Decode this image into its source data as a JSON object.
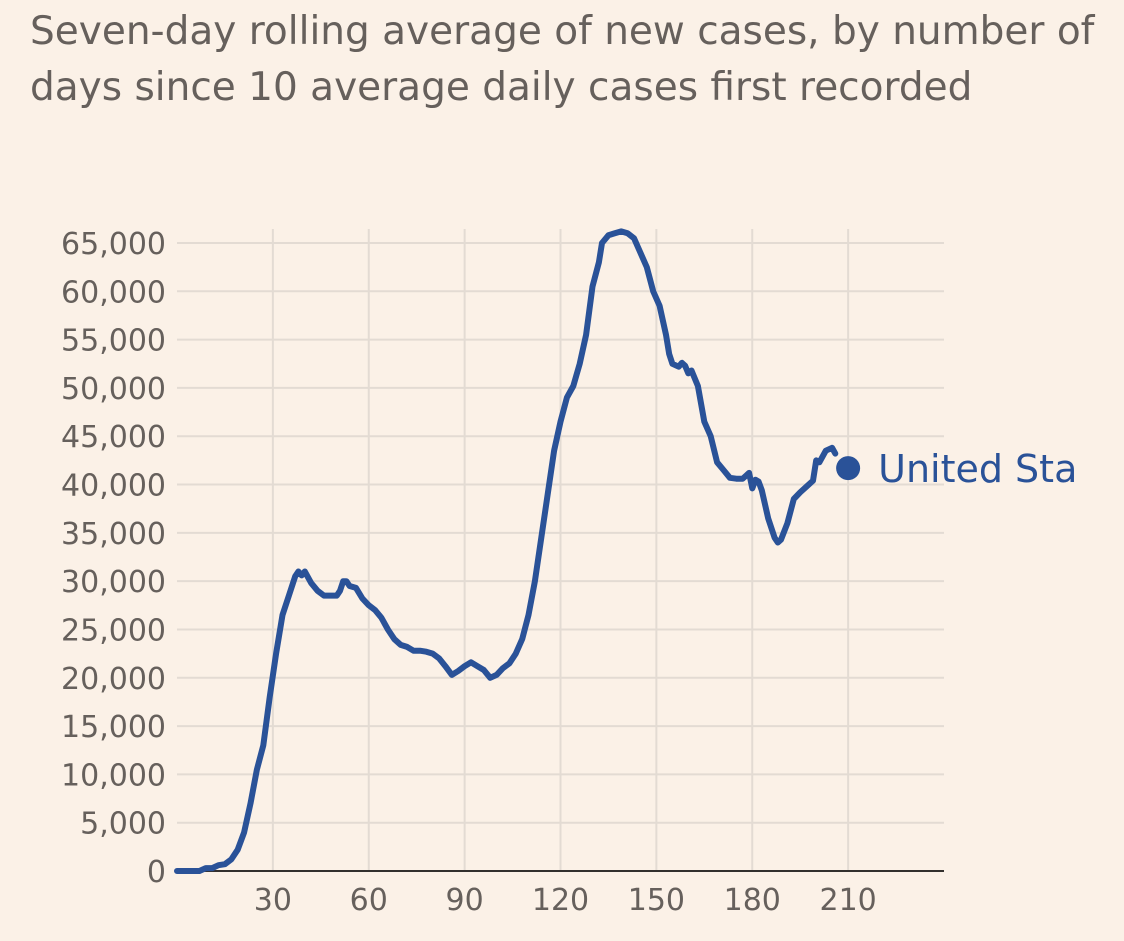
{
  "title": "Seven-day rolling average of new cases, by number of days since 10 average daily cases first recorded",
  "colors": {
    "background": "#fbf1e7",
    "grid": "#e3dbd3",
    "text": "#66605c",
    "series": "#2a5298",
    "axis": "#33302e"
  },
  "chart_data": {
    "type": "line",
    "title": "Seven-day rolling average of new cases, by number of days since 10 average daily cases first recorded",
    "xlabel": "",
    "ylabel": "",
    "xlim": [
      0,
      240
    ],
    "ylim": [
      0,
      65000
    ],
    "x_ticks": [
      30,
      60,
      90,
      120,
      150,
      180,
      210
    ],
    "x_tick_labels": [
      "30",
      "60",
      "90",
      "120",
      "150",
      "180",
      "210"
    ],
    "y_ticks": [
      0,
      5000,
      10000,
      15000,
      20000,
      25000,
      30000,
      35000,
      40000,
      45000,
      50000,
      55000,
      60000,
      65000
    ],
    "y_tick_labels": [
      "0",
      "5,000",
      "10,000",
      "15,000",
      "20,000",
      "25,000",
      "30,000",
      "35,000",
      "40,000",
      "45,000",
      "50,000",
      "55,000",
      "60,000",
      "65,000"
    ],
    "grid": true,
    "series": [
      {
        "name": "United States",
        "label_shown": "United Sta",
        "points": [
          [
            0,
            0
          ],
          [
            4,
            0
          ],
          [
            7,
            0
          ],
          [
            9,
            300
          ],
          [
            11,
            300
          ],
          [
            13,
            600
          ],
          [
            15,
            700
          ],
          [
            17,
            1200
          ],
          [
            19,
            2200
          ],
          [
            21,
            4000
          ],
          [
            23,
            7000
          ],
          [
            25,
            10500
          ],
          [
            27,
            13000
          ],
          [
            29,
            18000
          ],
          [
            31,
            22500
          ],
          [
            33,
            26500
          ],
          [
            35,
            28500
          ],
          [
            37,
            30500
          ],
          [
            38,
            31000
          ],
          [
            39,
            30600
          ],
          [
            40,
            31000
          ],
          [
            42,
            29800
          ],
          [
            44,
            29000
          ],
          [
            46,
            28500
          ],
          [
            48,
            28500
          ],
          [
            50,
            28500
          ],
          [
            51,
            29000
          ],
          [
            52,
            30000
          ],
          [
            53,
            30000
          ],
          [
            54,
            29500
          ],
          [
            56,
            29300
          ],
          [
            58,
            28200
          ],
          [
            60,
            27500
          ],
          [
            62,
            27000
          ],
          [
            64,
            26200
          ],
          [
            66,
            25000
          ],
          [
            68,
            24000
          ],
          [
            70,
            23400
          ],
          [
            72,
            23200
          ],
          [
            74,
            22800
          ],
          [
            76,
            22800
          ],
          [
            78,
            22700
          ],
          [
            80,
            22500
          ],
          [
            82,
            22000
          ],
          [
            84,
            21200
          ],
          [
            86,
            20300
          ],
          [
            88,
            20700
          ],
          [
            90,
            21200
          ],
          [
            92,
            21600
          ],
          [
            94,
            21200
          ],
          [
            96,
            20800
          ],
          [
            98,
            20000
          ],
          [
            100,
            20300
          ],
          [
            102,
            21000
          ],
          [
            104,
            21500
          ],
          [
            106,
            22500
          ],
          [
            108,
            24000
          ],
          [
            110,
            26500
          ],
          [
            112,
            30000
          ],
          [
            114,
            34500
          ],
          [
            116,
            39000
          ],
          [
            118,
            43500
          ],
          [
            120,
            46500
          ],
          [
            122,
            49000
          ],
          [
            124,
            50200
          ],
          [
            126,
            52500
          ],
          [
            128,
            55500
          ],
          [
            130,
            60500
          ],
          [
            132,
            63000
          ],
          [
            133,
            65000
          ],
          [
            135,
            65800
          ],
          [
            137,
            66000
          ],
          [
            139,
            66200
          ],
          [
            141,
            66000
          ],
          [
            143,
            65500
          ],
          [
            145,
            64000
          ],
          [
            147,
            62500
          ],
          [
            149,
            60000
          ],
          [
            151,
            58500
          ],
          [
            153,
            55500
          ],
          [
            154,
            53500
          ],
          [
            155,
            52500
          ],
          [
            157,
            52200
          ],
          [
            158,
            52600
          ],
          [
            159,
            52300
          ],
          [
            160,
            51500
          ],
          [
            161,
            51800
          ],
          [
            163,
            50200
          ],
          [
            165,
            46500
          ],
          [
            167,
            45000
          ],
          [
            169,
            42300
          ],
          [
            171,
            41500
          ],
          [
            173,
            40700
          ],
          [
            175,
            40600
          ],
          [
            177,
            40600
          ],
          [
            178,
            40900
          ],
          [
            179,
            41200
          ],
          [
            180,
            39600
          ],
          [
            181,
            40500
          ],
          [
            182,
            40300
          ],
          [
            183,
            39400
          ],
          [
            185,
            36500
          ],
          [
            187,
            34500
          ],
          [
            188,
            34000
          ],
          [
            189,
            34300
          ],
          [
            191,
            36000
          ],
          [
            193,
            38500
          ],
          [
            195,
            39200
          ],
          [
            197,
            39800
          ],
          [
            199,
            40400
          ],
          [
            200,
            42500
          ],
          [
            201,
            42300
          ],
          [
            203,
            43500
          ],
          [
            205,
            43800
          ],
          [
            206,
            43200
          ]
        ],
        "end_marker": [
          210,
          41700
        ]
      }
    ]
  }
}
